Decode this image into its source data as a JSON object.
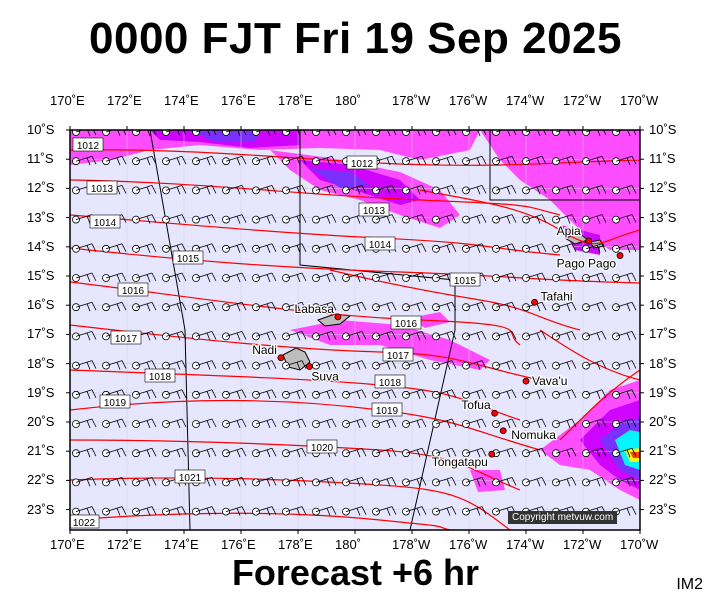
{
  "header": {
    "title": "0000 FJT Fri 19 Sep 2025"
  },
  "footer": {
    "forecast": "Forecast +6 hr",
    "corner_code": "IM2",
    "copyright": "Copyright metvuw.com"
  },
  "axes": {
    "longitude_labels": [
      "170˚E",
      "172˚E",
      "174˚E",
      "176˚E",
      "178˚E",
      "180˚",
      "178˚W",
      "176˚W",
      "174˚W",
      "172˚W",
      "170˚W"
    ],
    "latitude_labels": [
      "10˚S",
      "11˚S",
      "12˚S",
      "13˚S",
      "14˚S",
      "15˚S",
      "16˚S",
      "17˚S",
      "18˚S",
      "19˚S",
      "20˚S",
      "21˚S",
      "22˚S",
      "23˚S"
    ]
  },
  "colors": {
    "background": "#e6e6ff",
    "isobar": "#ff0000",
    "rain_light": "#ff44ff",
    "rain_medium": "#cc00ff",
    "rain_heavy": "#7733ff",
    "rain_extreme": "#00ffff",
    "coast": "#000000"
  },
  "isobar_labels": [
    "1012",
    "1013",
    "1014",
    "1015",
    "1016",
    "1017",
    "1018",
    "1019",
    "1012",
    "1013",
    "1014",
    "1015",
    "1016",
    "1017",
    "1018",
    "1019",
    "1020",
    "1021",
    "1022"
  ],
  "places": [
    {
      "name": "Apia",
      "lon_deg": -171.8,
      "lat_deg": -13.8
    },
    {
      "name": "Pago Pago",
      "lon_deg": -170.7,
      "lat_deg": -14.3
    },
    {
      "name": "Tafahi",
      "lon_deg": -173.7,
      "lat_deg": -15.9
    },
    {
      "name": "Labasa",
      "lon_deg": 179.4,
      "lat_deg": -16.4
    },
    {
      "name": "Nadi",
      "lon_deg": 177.4,
      "lat_deg": -17.8
    },
    {
      "name": "Suva",
      "lon_deg": 178.4,
      "lat_deg": -18.1
    },
    {
      "name": "Vava'u",
      "lon_deg": -174.0,
      "lat_deg": -18.6
    },
    {
      "name": "Tofua",
      "lon_deg": -175.1,
      "lat_deg": -19.7
    },
    {
      "name": "Nomuka",
      "lon_deg": -174.8,
      "lat_deg": -20.3
    },
    {
      "name": "Tongatapu",
      "lon_deg": -175.2,
      "lat_deg": -21.1
    }
  ]
}
